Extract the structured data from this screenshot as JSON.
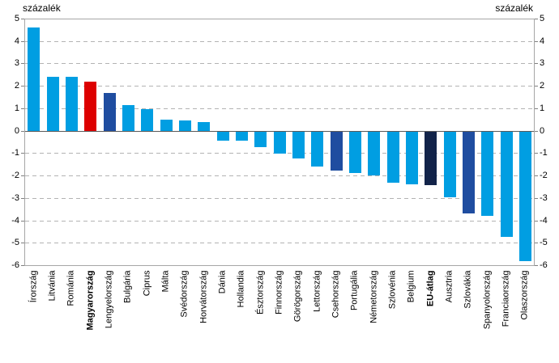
{
  "header": {
    "left_axis_title": "százalék",
    "right_axis_title": "százalék"
  },
  "chart_data": {
    "type": "bar",
    "title": "",
    "ylabel_left": "százalék",
    "ylabel_right": "százalék",
    "ylim": [
      -6,
      5
    ],
    "yticks": [
      5,
      4,
      3,
      2,
      1,
      0,
      -1,
      -2,
      -3,
      -4,
      -5,
      -6
    ],
    "grid": "horizontal-dashed",
    "legend": "none",
    "categories": [
      "Írország",
      "Litvánia",
      "Románia",
      "Magyarország",
      "Lengyelország",
      "Bulgária",
      "Ciprus",
      "Málta",
      "Svédország",
      "Horvátország",
      "Dánia",
      "Hollandia",
      "Észtország",
      "Finnország",
      "Görögország",
      "Lettország",
      "Csehország",
      "Portugália",
      "Németország",
      "Szlovénia",
      "Belgium",
      "EU-átlag",
      "Ausztria",
      "Szlovákia",
      "Spanyolország",
      "Franciaország",
      "Olaszország"
    ],
    "values": [
      4.6,
      2.4,
      2.4,
      2.2,
      1.7,
      1.15,
      0.95,
      0.5,
      0.45,
      0.4,
      -0.4,
      -0.4,
      -0.7,
      -1.0,
      -1.2,
      -1.55,
      -1.75,
      -1.85,
      -1.95,
      -2.3,
      -2.35,
      -2.4,
      -2.95,
      -3.65,
      -3.75,
      -4.7,
      -5.8
    ],
    "bar_styles": [
      "light",
      "light",
      "light",
      "red",
      "mid",
      "light",
      "light",
      "light",
      "light",
      "light",
      "light",
      "light",
      "light",
      "light",
      "light",
      "light",
      "mid",
      "light",
      "light",
      "light",
      "light",
      "navy",
      "light",
      "mid",
      "light",
      "light",
      "light"
    ],
    "bold_labels": [
      "Magyarország",
      "EU-átlag"
    ],
    "colors": {
      "light": "#009ee2",
      "red": "#dd0000",
      "mid": "#1f4da0",
      "navy": "#122349",
      "grid": "#b3b3b3",
      "zero_line": "#595959",
      "border": "#a6a6a6"
    }
  }
}
